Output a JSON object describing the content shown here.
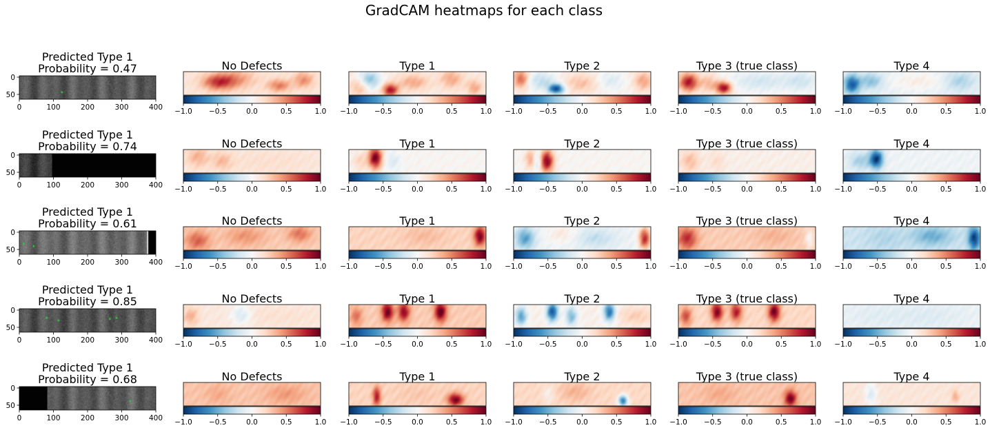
{
  "suptitle": "GradCAM heatmaps for each class",
  "chart_data": {
    "type": "heatmap",
    "title": "GradCAM heatmaps for each class",
    "colormap": "RdBu_r",
    "colorbar": {
      "range": [
        -1.0,
        1.0
      ],
      "ticks": [
        "−1.0",
        "−0.5",
        "0.0",
        "0.5",
        "1.0"
      ]
    },
    "image_axes": {
      "x_ticks": [
        "0",
        "100",
        "200",
        "300",
        "400"
      ],
      "y_ticks": [
        "0",
        "50"
      ],
      "xlim": [
        0,
        400
      ],
      "ylim": [
        64,
        0
      ]
    },
    "column_titles": [
      "No Defects",
      "Type 1",
      "Type 2",
      "Type 3 (true class)",
      "Type 4"
    ],
    "rows": [
      {
        "prediction_label": "Predicted Type 1",
        "probability_label": "Probability = 0.47",
        "image": {
          "base_gray": "#5a5a5a",
          "dark_until": 0,
          "bright_from": 400,
          "spots": [
            [
              125,
              45
            ]
          ]
        },
        "heatmaps": [
          {
            "base": 0.12,
            "blobs": [
              [
                25,
                0.45,
                0.08,
                0.25,
                0.55
              ],
              [
                70,
                0.6,
                0.06,
                0.2,
                0.4
              ],
              [
                88,
                0.35,
                0.05,
                0.25,
                0.35
              ],
              [
                38,
                0.3,
                0.1,
                0.3,
                0.3
              ]
            ]
          },
          {
            "base": 0.08,
            "blobs": [
              [
                14,
                0.35,
                0.06,
                0.3,
                -0.55
              ],
              [
                30,
                0.8,
                0.04,
                0.2,
                0.75
              ],
              [
                47,
                0.45,
                0.08,
                0.25,
                0.3
              ],
              [
                8,
                0.6,
                0.05,
                0.3,
                0.35
              ],
              [
                75,
                0.3,
                0.06,
                0.3,
                0.3
              ],
              [
                92,
                0.7,
                0.04,
                0.25,
                0.3
              ]
            ]
          },
          {
            "base": 0.05,
            "blobs": [
              [
                31,
                0.75,
                0.04,
                0.16,
                -0.92
              ],
              [
                20,
                0.4,
                0.08,
                0.3,
                -0.3
              ],
              [
                5,
                0.3,
                0.04,
                0.3,
                0.55
              ],
              [
                50,
                0.5,
                0.1,
                0.3,
                0.25
              ],
              [
                95,
                0.4,
                0.05,
                0.3,
                0.35
              ],
              [
                70,
                0.4,
                0.08,
                0.3,
                -0.2
              ]
            ]
          },
          {
            "base": 0.02,
            "blobs": [
              [
                7,
                0.45,
                0.05,
                0.3,
                0.8
              ],
              [
                33,
                0.7,
                0.04,
                0.2,
                0.85
              ],
              [
                22,
                0.5,
                0.05,
                0.3,
                0.3
              ],
              [
                60,
                0.4,
                0.15,
                0.3,
                -0.2
              ],
              [
                90,
                0.4,
                0.08,
                0.3,
                -0.2
              ]
            ]
          },
          {
            "base": -0.08,
            "blobs": [
              [
                6,
                0.55,
                0.04,
                0.3,
                -0.75
              ],
              [
                20,
                0.4,
                0.06,
                0.25,
                -0.35
              ],
              [
                55,
                0.4,
                0.15,
                0.3,
                0.15
              ],
              [
                85,
                0.4,
                0.08,
                0.3,
                -0.25
              ]
            ]
          }
        ]
      },
      {
        "prediction_label": "Predicted Type 1",
        "probability_label": "Probability = 0.74",
        "image": {
          "base_gray": "#3f3f3f",
          "dark_until": 95,
          "dark_from_left": false,
          "spots": []
        },
        "heatmaps": [
          {
            "base": 0.08,
            "blobs": [
              [
                10,
                0.3,
                0.06,
                0.35,
                0.25
              ],
              [
                28,
                0.5,
                0.05,
                0.3,
                0.2
              ],
              [
                60,
                0.5,
                0.3,
                0.5,
                0.08
              ]
            ]
          },
          {
            "base": 0.02,
            "blobs": [
              [
                19,
                0.35,
                0.035,
                0.35,
                0.95
              ],
              [
                32,
                0.5,
                0.04,
                0.3,
                -0.15
              ],
              [
                8,
                0.5,
                0.04,
                0.3,
                0.2
              ]
            ]
          },
          {
            "base": 0.02,
            "blobs": [
              [
                24,
                0.5,
                0.035,
                0.35,
                0.9
              ],
              [
                12,
                0.4,
                0.03,
                0.3,
                0.35
              ],
              [
                17,
                0.5,
                0.02,
                0.3,
                -0.3
              ]
            ]
          },
          {
            "base": 0.06,
            "blobs": [
              [
                8,
                0.5,
                0.05,
                0.35,
                0.25
              ],
              [
                28,
                0.5,
                0.04,
                0.3,
                0.12
              ]
            ]
          },
          {
            "base": -0.04,
            "blobs": [
              [
                24,
                0.4,
                0.035,
                0.3,
                -0.9
              ],
              [
                12,
                0.5,
                0.06,
                0.3,
                -0.3
              ]
            ]
          }
        ]
      },
      {
        "prediction_label": "Predicted Type 1",
        "probability_label": "Probability = 0.61",
        "image": {
          "base_gray": "#6a6a6a",
          "dark_until": 0,
          "dark_from": 372,
          "spots": [
            [
              12,
              35
            ],
            [
              42,
              42
            ]
          ]
        },
        "heatmaps": [
          {
            "base": 0.25,
            "blobs": [
              [
                10,
                0.6,
                0.06,
                0.3,
                0.35
              ],
              [
                45,
                0.4,
                0.1,
                0.3,
                0.2
              ],
              [
                85,
                0.3,
                0.06,
                0.25,
                0.3
              ]
            ]
          },
          {
            "base": 0.22,
            "blobs": [
              [
                96,
                0.4,
                0.03,
                0.3,
                0.75
              ],
              [
                55,
                0.4,
                0.1,
                0.3,
                0.1
              ]
            ]
          },
          {
            "base": -0.05,
            "blobs": [
              [
                8,
                0.5,
                0.05,
                0.35,
                -0.5
              ],
              [
                96,
                0.5,
                0.03,
                0.35,
                0.8
              ],
              [
                35,
                0.3,
                0.08,
                0.3,
                0.15
              ],
              [
                60,
                0.5,
                0.1,
                0.3,
                -0.2
              ]
            ]
          },
          {
            "base": 0.25,
            "blobs": [
              [
                6,
                0.5,
                0.05,
                0.35,
                0.5
              ],
              [
                96,
                0.5,
                0.02,
                0.3,
                -0.25
              ],
              [
                70,
                0.4,
                0.1,
                0.3,
                0.1
              ]
            ]
          },
          {
            "base": -0.2,
            "blobs": [
              [
                96,
                0.5,
                0.03,
                0.35,
                -0.75
              ],
              [
                30,
                0.5,
                0.1,
                0.4,
                -0.1
              ],
              [
                65,
                0.4,
                0.1,
                0.3,
                -0.3
              ]
            ]
          }
        ]
      },
      {
        "prediction_label": "Predicted Type 1",
        "probability_label": "Probability = 0.85",
        "image": {
          "base_gray": "#555555",
          "dark_until": 0,
          "spots": [
            [
              80,
              25
            ],
            [
              115,
              32
            ],
            [
              265,
              28
            ],
            [
              285,
              25
            ]
          ]
        },
        "heatmaps": [
          {
            "base": 0.1,
            "blobs": [
              [
                42,
                0.45,
                0.05,
                0.3,
                -0.25
              ],
              [
                5,
                0.5,
                0.04,
                0.3,
                0.25
              ],
              [
                70,
                0.5,
                0.2,
                0.3,
                0.05
              ]
            ]
          },
          {
            "base": 0.25,
            "blobs": [
              [
                28,
                0.3,
                0.03,
                0.3,
                0.75
              ],
              [
                40,
                0.3,
                0.03,
                0.3,
                0.65
              ],
              [
                67,
                0.3,
                0.03,
                0.3,
                0.8
              ],
              [
                5,
                0.5,
                0.03,
                0.3,
                0.3
              ]
            ]
          },
          {
            "base": 0.05,
            "blobs": [
              [
                5,
                0.5,
                0.03,
                0.3,
                -0.6
              ],
              [
                28,
                0.3,
                0.03,
                0.3,
                -0.9
              ],
              [
                42,
                0.5,
                0.03,
                0.3,
                -0.5
              ],
              [
                70,
                0.3,
                0.03,
                0.3,
                -0.8
              ],
              [
                90,
                0.5,
                0.1,
                0.3,
                0.2
              ]
            ]
          },
          {
            "base": 0.2,
            "blobs": [
              [
                5,
                0.5,
                0.03,
                0.3,
                0.45
              ],
              [
                28,
                0.3,
                0.03,
                0.3,
                0.75
              ],
              [
                42,
                0.3,
                0.03,
                0.3,
                0.6
              ],
              [
                70,
                0.3,
                0.03,
                0.3,
                0.8
              ]
            ]
          },
          {
            "base": -0.05,
            "blobs": [
              [
                20,
                0.5,
                0.15,
                0.4,
                -0.05
              ],
              [
                60,
                0.5,
                0.2,
                0.4,
                -0.08
              ]
            ]
          }
        ]
      },
      {
        "prediction_label": "Predicted Type 1",
        "probability_label": "Probability = 0.68",
        "image": {
          "base_gray": "#5c5c5c",
          "dark_until": 82,
          "dark_from_left": true,
          "spots": [
            [
              325,
              40
            ]
          ]
        },
        "heatmaps": [
          {
            "base": 0.28,
            "blobs": [
              [
                25,
                0.5,
                0.06,
                0.3,
                0.1
              ],
              [
                75,
                0.5,
                0.1,
                0.3,
                0.15
              ]
            ]
          },
          {
            "base": 0.22,
            "blobs": [
              [
                20,
                0.6,
                0.02,
                0.3,
                0.6
              ],
              [
                78,
                0.75,
                0.04,
                0.2,
                0.75
              ],
              [
                50,
                0.5,
                0.1,
                0.3,
                0.05
              ]
            ]
          },
          {
            "base": 0.2,
            "blobs": [
              [
                80,
                0.8,
                0.025,
                0.18,
                -0.9
              ],
              [
                25,
                0.5,
                0.03,
                0.3,
                -0.15
              ],
              [
                45,
                0.4,
                0.08,
                0.3,
                0.15
              ]
            ]
          },
          {
            "base": 0.28,
            "blobs": [
              [
                82,
                0.7,
                0.03,
                0.25,
                0.7
              ],
              [
                30,
                0.5,
                0.08,
                0.3,
                0.1
              ]
            ]
          },
          {
            "base": 0.12,
            "blobs": [
              [
                20,
                0.5,
                0.03,
                0.35,
                -0.25
              ],
              [
                82,
                0.6,
                0.02,
                0.2,
                0.25
              ]
            ]
          }
        ]
      }
    ]
  }
}
